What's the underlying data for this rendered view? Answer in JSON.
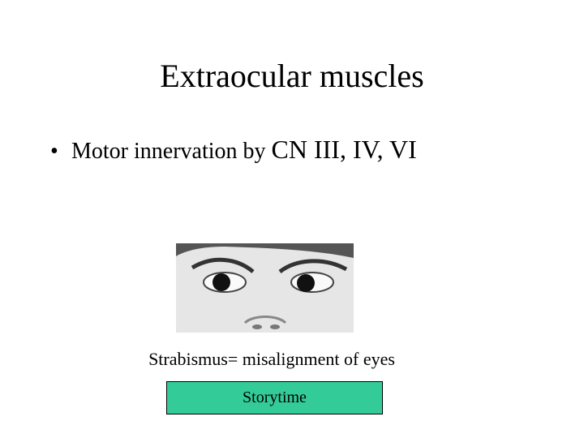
{
  "slide": {
    "title": "Extraocular muscles",
    "bullet": {
      "text": "Motor innervation by",
      "emphasis": "CN III, IV, VI"
    },
    "caption": "Strabismus= misalignment of eyes",
    "button": "Storytime"
  }
}
